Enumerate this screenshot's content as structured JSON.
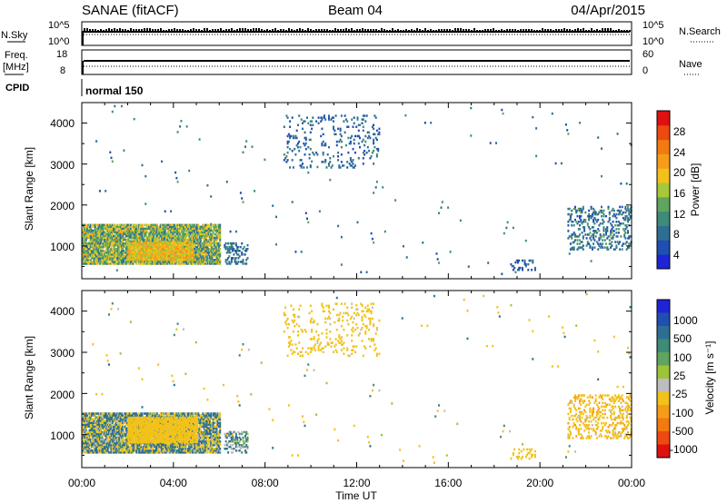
{
  "header": {
    "station": "SANAE (fitACF)",
    "beam": "Beam 04",
    "date": "04/Apr/2015"
  },
  "strips": {
    "nsky_label": "N.Sky",
    "nsky_ticks": [
      "10^5",
      "10^0"
    ],
    "nsearch_label": "N.Search",
    "nsearch_ticks": [
      "10^5",
      "10^0"
    ],
    "freq_label": "Freq.",
    "freq_unit": "[MHz]",
    "freq_ticks": [
      "18",
      "8"
    ],
    "nave_label": "Nave",
    "nave_ticks": [
      "60",
      "0"
    ],
    "cpid_label": "CPID",
    "cpid_value": "normal 150"
  },
  "colors": {
    "power": [
      "#1f24d6",
      "#1f4fb0",
      "#2f6e93",
      "#3f8a78",
      "#5fa45f",
      "#a6c83a",
      "#f2c21a",
      "#f59d1a",
      "#f27a10",
      "#ec4a10",
      "#e01010"
    ],
    "velocity": [
      "#1f24d6",
      "#1f4fb0",
      "#2f6e93",
      "#3f8a78",
      "#5fa45f",
      "#9cc43a",
      "#bdbdbd",
      "#f2c21a",
      "#f59d1a",
      "#f27a10",
      "#ec4a10",
      "#e01010"
    ]
  },
  "chart_data": [
    {
      "type": "heatmap",
      "name": "power-panel",
      "ylabel": "Slant Range [km]",
      "xlabel": "",
      "ylim": [
        200,
        4500
      ],
      "yticks": [
        "4000",
        "3000",
        "2000",
        "1000"
      ],
      "colorbar": {
        "label": "Power [dB]",
        "ticks": [
          "28",
          "24",
          "20",
          "16",
          "12",
          "8",
          "4"
        ],
        "range": [
          0,
          30
        ]
      },
      "clusters": [
        {
          "t0": 0.0,
          "t1": 6.0,
          "r0": 550,
          "r1": 1500,
          "v": [
            6,
            20
          ],
          "density": 0.85
        },
        {
          "t0": 2.0,
          "t1": 4.8,
          "r0": 650,
          "r1": 1100,
          "v": [
            14,
            22
          ],
          "density": 0.9
        },
        {
          "t0": 6.2,
          "t1": 7.2,
          "r0": 550,
          "r1": 1050,
          "v": [
            4,
            10
          ],
          "density": 0.4
        },
        {
          "t0": 8.8,
          "t1": 13.0,
          "r0": 2900,
          "r1": 4200,
          "v": [
            3,
            9
          ],
          "density": 0.1
        },
        {
          "t0": 18.7,
          "t1": 19.8,
          "r0": 400,
          "r1": 650,
          "v": [
            3,
            7
          ],
          "density": 0.2
        },
        {
          "t0": 21.2,
          "t1": 24.0,
          "r0": 900,
          "r1": 1950,
          "v": [
            3,
            12
          ],
          "density": 0.25
        },
        {
          "t0": 0.0,
          "t1": 24.0,
          "r0": 300,
          "r1": 4400,
          "v": [
            3,
            12
          ],
          "density": 0.003
        }
      ]
    },
    {
      "type": "heatmap",
      "name": "velocity-panel",
      "ylabel": "Slant Range [km]",
      "xlabel": "Time UT",
      "ylim": [
        200,
        4500
      ],
      "yticks": [
        "4000",
        "3000",
        "2000",
        "1000"
      ],
      "xlim": [
        0,
        24
      ],
      "xticks": [
        "00:00",
        "04:00",
        "08:00",
        "12:00",
        "16:00",
        "20:00",
        "00:00"
      ],
      "colorbar": {
        "label": "Velocity [m s⁻¹]",
        "ticks": [
          "1000",
          "500",
          "100",
          "25",
          "-25",
          "-100",
          "-500",
          "-1000"
        ],
        "range": [
          -1200,
          1200
        ]
      },
      "clusters": [
        {
          "t0": 0.0,
          "t1": 6.0,
          "r0": 550,
          "r1": 1500,
          "v": [
            -300,
            400
          ],
          "density": 0.85
        },
        {
          "t0": 2.0,
          "t1": 5.0,
          "r0": 800,
          "r1": 1400,
          "v": [
            -500,
            -120
          ],
          "density": 0.8
        },
        {
          "t0": 6.2,
          "t1": 7.2,
          "r0": 550,
          "r1": 1050,
          "v": [
            -100,
            300
          ],
          "density": 0.4
        },
        {
          "t0": 8.8,
          "t1": 13.0,
          "r0": 2900,
          "r1": 4200,
          "v": [
            -500,
            -80
          ],
          "density": 0.1
        },
        {
          "t0": 18.7,
          "t1": 19.8,
          "r0": 400,
          "r1": 650,
          "v": [
            -300,
            -100
          ],
          "density": 0.2
        },
        {
          "t0": 21.2,
          "t1": 24.0,
          "r0": 900,
          "r1": 1950,
          "v": [
            -600,
            -80
          ],
          "density": 0.25
        },
        {
          "t0": 0.0,
          "t1": 24.0,
          "r0": 300,
          "r1": 4400,
          "v": [
            -500,
            200
          ],
          "density": 0.003
        }
      ]
    }
  ]
}
